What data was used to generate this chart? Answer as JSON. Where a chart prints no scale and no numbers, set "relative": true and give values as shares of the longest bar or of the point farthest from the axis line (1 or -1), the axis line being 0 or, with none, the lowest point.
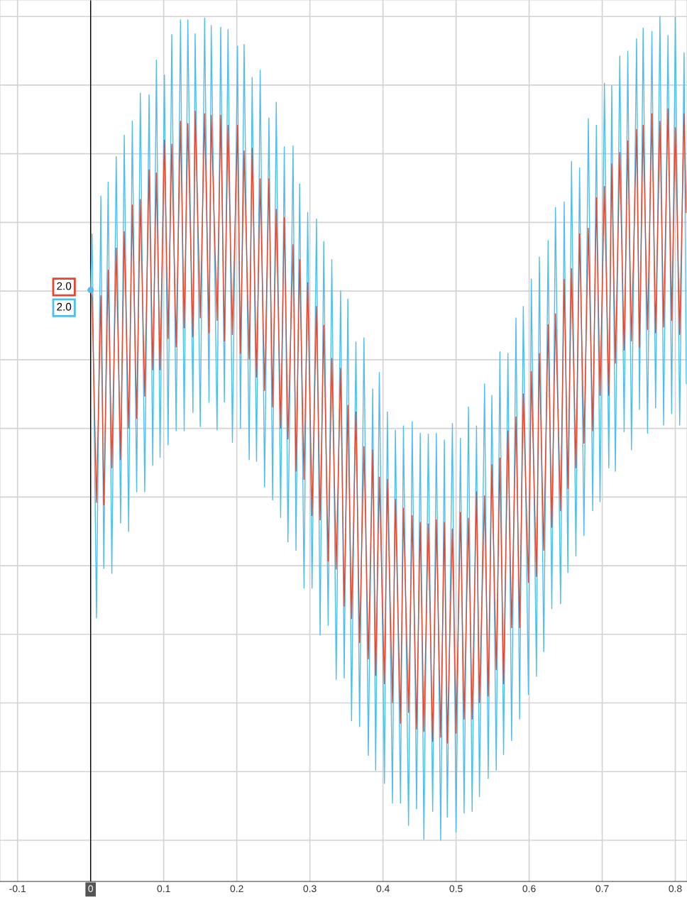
{
  "chart_data": {
    "type": "line",
    "relative": true,
    "x": [
      0,
      0.002,
      0.008,
      0.014,
      0.018,
      0.024,
      0.029,
      0.035,
      0.041,
      0.046,
      0.052,
      0.057,
      0.063,
      0.068,
      0.074,
      0.08,
      0.085,
      0.09,
      0.095,
      0.101,
      0.106,
      0.111,
      0.117,
      0.123,
      0.128,
      0.133,
      0.14,
      0.143,
      0.15,
      0.156,
      0.162,
      0.165,
      0.173,
      0.178,
      0.183,
      0.188,
      0.194,
      0.201,
      0.205,
      0.21,
      0.217,
      0.221,
      0.227,
      0.232,
      0.238,
      0.244,
      0.249,
      0.254,
      0.26,
      0.265,
      0.27,
      0.277,
      0.281,
      0.286,
      0.292,
      0.297,
      0.303,
      0.309,
      0.314,
      0.319,
      0.325,
      0.33,
      0.336,
      0.342,
      0.347,
      0.352,
      0.357,
      0.363,
      0.368,
      0.374,
      0.38,
      0.386,
      0.39,
      0.395,
      0.402,
      0.406,
      0.413,
      0.417,
      0.424,
      0.428,
      0.435,
      0.44,
      0.446,
      0.451,
      0.456,
      0.462,
      0.468,
      0.473,
      0.479,
      0.484,
      0.488,
      0.495,
      0.5,
      0.506,
      0.511,
      0.517,
      0.522,
      0.528,
      0.532,
      0.539,
      0.544,
      0.549,
      0.555,
      0.56,
      0.565,
      0.571,
      0.576,
      0.582,
      0.587,
      0.592,
      0.599,
      0.603,
      0.61,
      0.614,
      0.62,
      0.626,
      0.631,
      0.636,
      0.643,
      0.648,
      0.653,
      0.658,
      0.664,
      0.669,
      0.675,
      0.681,
      0.687,
      0.692,
      0.697,
      0.703,
      0.709,
      0.713,
      0.718,
      0.724,
      0.73,
      0.735,
      0.74,
      0.747,
      0.751,
      0.756,
      0.762,
      0.768,
      0.773,
      0.779,
      0.784,
      0.79,
      0.795,
      0.8,
      0.806,
      0.812,
      0.815
    ],
    "series": [
      {
        "color": "#4dbeee",
        "values": [
          0.668,
          0.736,
          0.27,
          0.782,
          0.33,
          0.799,
          0.324,
          0.83,
          0.385,
          0.856,
          0.375,
          0.873,
          0.423,
          0.907,
          0.423,
          0.905,
          0.455,
          0.947,
          0.465,
          0.929,
          0.48,
          0.978,
          0.497,
          0.996,
          0.497,
          0.996,
          0.519,
          0.979,
          0.502,
          0.998,
          0.532,
          0.989,
          0.498,
          0.987,
          0.532,
          0.984,
          0.483,
          0.964,
          0.5,
          0.966,
          0.462,
          0.926,
          0.46,
          0.935,
          0.429,
          0.877,
          0.413,
          0.896,
          0.392,
          0.842,
          0.362,
          0.843,
          0.352,
          0.797,
          0.306,
          0.762,
          0.306,
          0.754,
          0.249,
          0.727,
          0.261,
          0.705,
          0.195,
          0.667,
          0.197,
          0.657,
          0.145,
          0.605,
          0.138,
          0.61,
          0.103,
          0.548,
          0.085,
          0.568,
          0.069,
          0.52,
          0.045,
          0.498,
          0.045,
          0.503,
          0.018,
          0.508,
          0.038,
          0.494,
          0.001,
          0.493,
          0.035,
          0.494,
          0,
          0.486,
          0.028,
          0.506,
          0.01,
          0.488,
          0.033,
          0.526,
          0.035,
          0.503,
          0.053,
          0.554,
          0.075,
          0.54,
          0.085,
          0.593,
          0.104,
          0.591,
          0.121,
          0.634,
          0.147,
          0.648,
          0.177,
          0.681,
          0.199,
          0.708,
          0.229,
          0.728,
          0.281,
          0.768,
          0.287,
          0.775,
          0.325,
          0.824,
          0.345,
          0.816,
          0.37,
          0.876,
          0.4,
          0.868,
          0.411,
          0.919,
          0.452,
          0.916,
          0.448,
          0.952,
          0.496,
          0.958,
          0.474,
          0.973,
          0.523,
          0.986,
          0.494,
          0.982,
          0.525,
          1.0,
          0.504,
          0.977,
          0.518,
          0.999,
          0.504,
          0.956,
          0.554
        ]
      },
      {
        "color": "#e8452c",
        "values": [
          0.668,
          0.658,
          0.41,
          0.661,
          0.407,
          0.692,
          0.452,
          0.719,
          0.462,
          0.739,
          0.5,
          0.771,
          0.512,
          0.778,
          0.539,
          0.814,
          0.571,
          0.81,
          0.571,
          0.85,
          0.609,
          0.845,
          0.599,
          0.873,
          0.622,
          0.87,
          0.611,
          0.885,
          0.634,
          0.882,
          0.616,
          0.88,
          0.631,
          0.88,
          0.606,
          0.868,
          0.614,
          0.868,
          0.591,
          0.837,
          0.584,
          0.84,
          0.562,
          0.803,
          0.546,
          0.803,
          0.526,
          0.766,
          0.5,
          0.756,
          0.487,
          0.723,
          0.448,
          0.705,
          0.438,
          0.677,
          0.394,
          0.648,
          0.389,
          0.625,
          0.339,
          0.585,
          0.329,
          0.573,
          0.284,
          0.528,
          0.269,
          0.52,
          0.24,
          0.478,
          0.22,
          0.474,
          0.2,
          0.441,
          0.19,
          0.438,
          0.167,
          0.414,
          0.142,
          0.403,
          0.155,
          0.394,
          0.135,
          0.386,
          0.132,
          0.384,
          0.12,
          0.389,
          0.125,
          0.386,
          0.118,
          0.378,
          0.13,
          0.398,
          0.147,
          0.391,
          0.147,
          0.423,
          0.167,
          0.418,
          0.175,
          0.456,
          0.207,
          0.464,
          0.19,
          0.497,
          0.258,
          0.514,
          0.258,
          0.542,
          0.313,
          0.569,
          0.32,
          0.591,
          0.352,
          0.626,
          0.38,
          0.639,
          0.4,
          0.681,
          0.427,
          0.694,
          0.452,
          0.736,
          0.482,
          0.743,
          0.497,
          0.78,
          0.54,
          0.794,
          0.54,
          0.821,
          0.579,
          0.835,
          0.595,
          0.849,
          0.606,
          0.863,
          0.598,
          0.868,
          0.62,
          0.882,
          0.616,
          0.873,
          0.623,
          0.888,
          0.631,
          0.865,
          0.614,
          0.882,
          0.762
        ]
      }
    ],
    "xlim": [
      -0.124,
      0.816
    ],
    "xticks": [
      -0.1,
      0,
      0.1,
      0.2,
      0.3,
      0.4,
      0.5,
      0.6,
      0.7,
      0.8
    ],
    "tick_labels": "x",
    "grid": true,
    "legend": false,
    "ref_lines": [
      {
        "axis": "x",
        "value": 0,
        "color": "#000000"
      }
    ],
    "annotations": [
      {
        "text": "2.0",
        "x": 0,
        "y": 0.668
      },
      {
        "text": "2.0",
        "x": 0,
        "y": 0.668
      }
    ]
  }
}
